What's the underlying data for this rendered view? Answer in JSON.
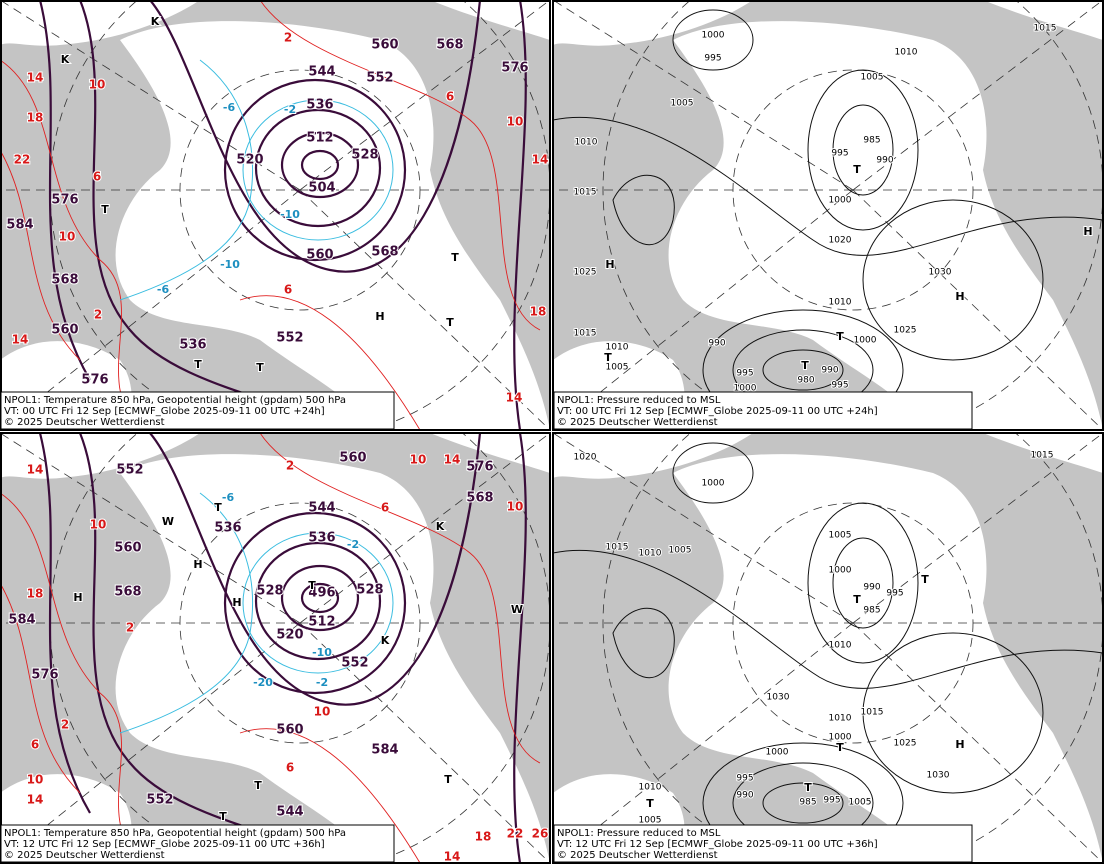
{
  "panels": [
    {
      "caption": [
        "NPOL1: Temperature 850 hPa, Geopotential height (gpdam) 500 hPa",
        "VT: 00 UTC Fri  12 Sep [ECMWF_Globe 2025-09-11 00 UTC +24h]",
        "© 2025 Deutscher Wetterdienst"
      ],
      "labels": [
        "536",
        "512",
        "504",
        "520",
        "528",
        "544",
        "552",
        "560",
        "568",
        "576",
        "560",
        "568",
        "536",
        "552",
        "584",
        "576",
        "568",
        "560",
        "576",
        "14",
        "18",
        "22",
        "10",
        "6",
        "10",
        "2",
        "14",
        "6",
        "2",
        "6",
        "10",
        "14",
        "18",
        "14",
        "-2",
        "-6",
        "-10",
        "-10",
        "-6",
        "T",
        "H",
        "T",
        "T",
        "T",
        "T",
        "K",
        "K"
      ]
    },
    {
      "caption": [
        "NPOL1: Pressure reduced to MSL",
        "VT: 00 UTC Fri  12 Sep [ECMWF_Globe 2025-09-11 00 UTC +24h]",
        "© 2025 Deutscher Wetterdienst"
      ],
      "labels": [
        "1000",
        "995",
        "1005",
        "1010",
        "1015",
        "1025",
        "1015",
        "1010",
        "1005",
        "985",
        "990",
        "995",
        "1000",
        "1020",
        "1010",
        "1030",
        "1025",
        "1000",
        "990",
        "995",
        "1000",
        "980",
        "990",
        "995",
        "1015",
        "1010",
        "1005",
        "H",
        "T",
        "H",
        "T",
        "T",
        "T",
        "H"
      ]
    },
    {
      "caption": [
        "NPOL1: Temperature 850 hPa, Geopotential height (gpdam) 500 hPa",
        "VT: 12 UTC Fri  12 Sep [ECMWF_Globe 2025-09-11 00 UTC +36h]",
        "© 2025 Deutscher Wetterdienst"
      ],
      "labels": [
        "560",
        "544",
        "536",
        "496",
        "512",
        "520",
        "528",
        "528",
        "552",
        "536",
        "552",
        "560",
        "568",
        "576",
        "584",
        "584",
        "560",
        "544",
        "552",
        "568",
        "576",
        "14",
        "10",
        "18",
        "2",
        "2",
        "6",
        "10",
        "14",
        "10",
        "14",
        "6",
        "10",
        "10",
        "6",
        "18",
        "22",
        "26",
        "14",
        "2",
        "-6",
        "-2",
        "-10",
        "-20",
        "-2",
        "H",
        "H",
        "H",
        "T",
        "T",
        "T",
        "T",
        "T",
        "K",
        "K",
        "W",
        "W"
      ]
    },
    {
      "caption": [
        "NPOL1: Pressure reduced to MSL",
        "VT: 12 UTC Fri  12 Sep [ECMWF_Globe 2025-09-11 00 UTC +36h]",
        "© 2025 Deutscher Wetterdienst"
      ],
      "labels": [
        "1020",
        "1000",
        "1015",
        "1010",
        "1005",
        "1005",
        "1000",
        "990",
        "985",
        "995",
        "1010",
        "1030",
        "1015",
        "1010",
        "1000",
        "1000",
        "995",
        "990",
        "985",
        "995",
        "1005",
        "1010",
        "1005",
        "1025",
        "1030",
        "1015",
        "T",
        "H",
        "T",
        "T",
        "T",
        "T"
      ]
    }
  ]
}
